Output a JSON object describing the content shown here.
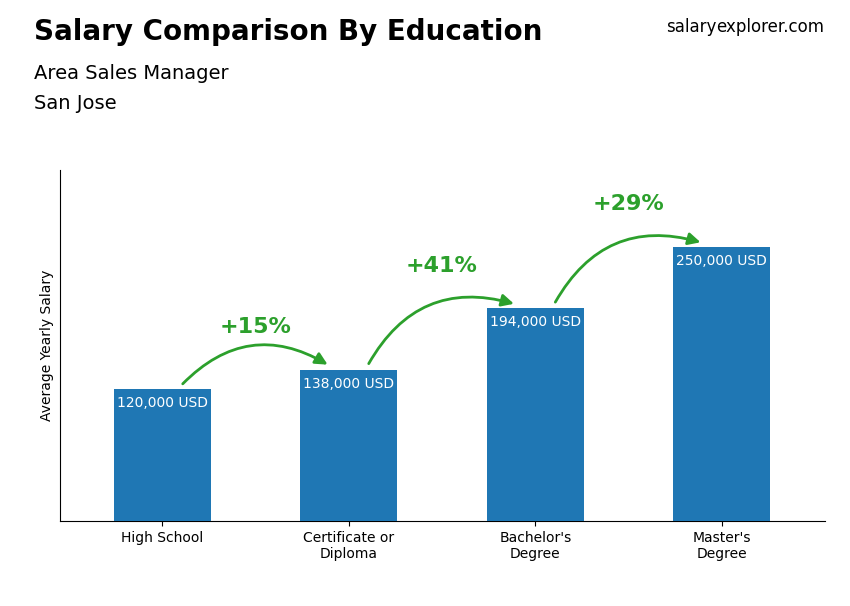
{
  "chart_data": {
    "type": "bar",
    "title": "Salary Comparison By Education",
    "subtitle": [
      "Area Sales Manager",
      "San Jose"
    ],
    "ylabel": "Average Yearly Salary",
    "categories": [
      "High School",
      "Certificate or\nDiploma",
      "Bachelor's\nDegree",
      "Master's\nDegree"
    ],
    "values": [
      120000,
      138000,
      194000,
      250000
    ],
    "value_labels": [
      "120,000 USD",
      "138,000 USD",
      "194,000 USD",
      "250,000 USD"
    ],
    "data_labels": true,
    "ylim": [
      0,
      320000
    ],
    "tick_labels": "x",
    "annotations": [
      {
        "text": "salary"
      },
      {
        "text": "explorer.com"
      },
      {
        "text": "+15%",
        "from": "High School",
        "to": "Certificate or\nDiploma"
      },
      {
        "text": "+41%",
        "from": "Certificate or\nDiploma",
        "to": "Bachelor's\nDegree"
      },
      {
        "text": "+29%",
        "from": "Bachelor's\nDegree",
        "to": "Master's\nDegree"
      }
    ]
  }
}
